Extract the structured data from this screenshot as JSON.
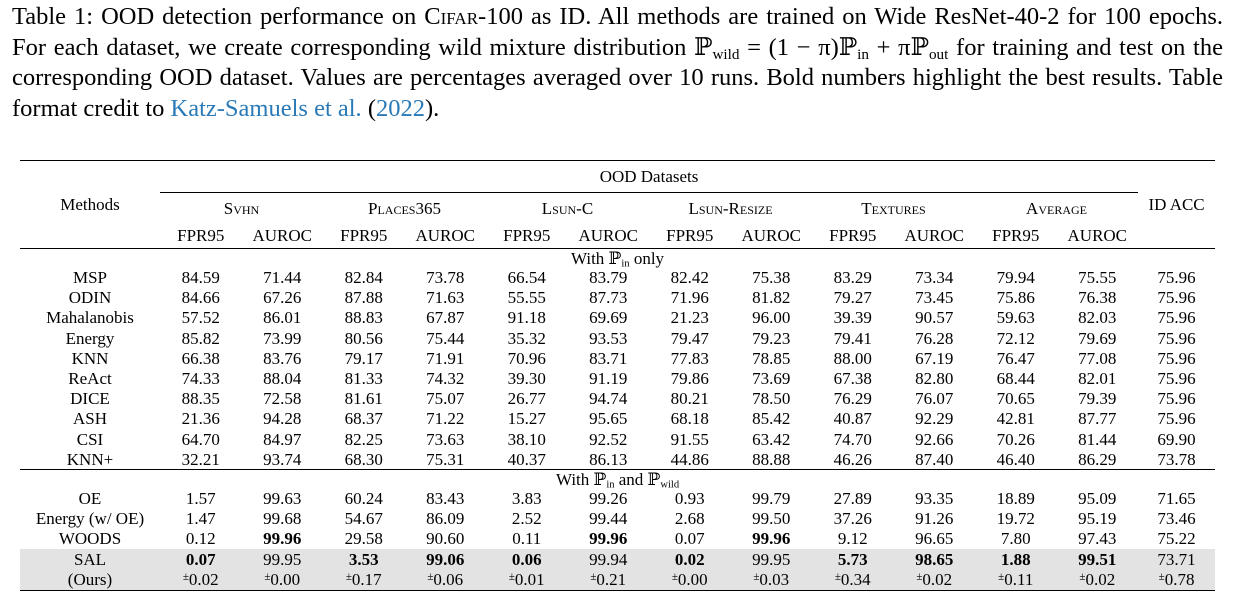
{
  "caption": [
    "Table 1: OOD detection performance on ",
    "Cifar-100",
    " as ID. All methods are trained on Wide ResNet-40-2 for 100 epochs. For each dataset, we create corresponding wild mixture distribution ",
    "ℙ",
    "wild",
    " = (1 − π)ℙ",
    "in",
    " + πℙ",
    "out",
    " for training and test on the corresponding OOD dataset. Values are percentages averaged over 10 runs. Bold numbers highlight the best results. Table format credit to ",
    "Katz-Samuels et al.",
    " (",
    "2022",
    ")."
  ],
  "table": {
    "header": {
      "methods": "Methods",
      "group": "OOD Datasets",
      "datasets": [
        "Svhn",
        "Places365",
        "Lsun-C",
        "Lsun-Resize",
        "Textures",
        "Average"
      ],
      "metrics": [
        "FPR95",
        "AUROC",
        "FPR95",
        "AUROC",
        "FPR95",
        "AUROC",
        "FPR95",
        "AUROC",
        "FPR95",
        "AUROC",
        "FPR95",
        "AUROC"
      ],
      "id_acc": "ID ACC"
    },
    "sections": [
      {
        "label": [
          {
            "text": "With ℙ"
          },
          {
            "text": "in",
            "sub": true
          },
          {
            "text": " only"
          }
        ],
        "rows": [
          {
            "method": "MSP",
            "values": [
              "84.59",
              "71.44",
              "82.84",
              "73.78",
              "66.54",
              "83.79",
              "82.42",
              "75.38",
              "83.29",
              "73.34",
              "79.94",
              "75.55",
              "75.96"
            ]
          },
          {
            "method": "ODIN",
            "values": [
              "84.66",
              "67.26",
              "87.88",
              "71.63",
              "55.55",
              "87.73",
              "71.96",
              "81.82",
              "79.27",
              "73.45",
              "75.86",
              "76.38",
              "75.96"
            ]
          },
          {
            "method": "Mahalanobis",
            "values": [
              "57.52",
              "86.01",
              "88.83",
              "67.87",
              "91.18",
              "69.69",
              "21.23",
              "96.00",
              "39.39",
              "90.57",
              "59.63",
              "82.03",
              "75.96"
            ]
          },
          {
            "method": "Energy",
            "values": [
              "85.82",
              "73.99",
              "80.56",
              "75.44",
              "35.32",
              "93.53",
              "79.47",
              "79.23",
              "79.41",
              "76.28",
              "72.12",
              "79.69",
              "75.96"
            ]
          },
          {
            "method": "KNN",
            "values": [
              "66.38",
              "83.76",
              "79.17",
              "71.91",
              "70.96",
              "83.71",
              "77.83",
              "78.85",
              "88.00",
              "67.19",
              "76.47",
              "77.08",
              "75.96"
            ]
          },
          {
            "method": "ReAct",
            "values": [
              "74.33",
              "88.04",
              "81.33",
              "74.32",
              "39.30",
              "91.19",
              "79.86",
              "73.69",
              "67.38",
              "82.80",
              "68.44",
              "82.01",
              "75.96"
            ]
          },
          {
            "method": "DICE",
            "values": [
              "88.35",
              "72.58",
              "81.61",
              "75.07",
              "26.77",
              "94.74",
              "80.21",
              "78.50",
              "76.29",
              "76.07",
              "70.65",
              "79.39",
              "75.96"
            ]
          },
          {
            "method": "ASH",
            "values": [
              "21.36",
              "94.28",
              "68.37",
              "71.22",
              "15.27",
              "95.65",
              "68.18",
              "85.42",
              "40.87",
              "92.29",
              "42.81",
              "87.77",
              "75.96"
            ]
          },
          {
            "method": "CSI",
            "values": [
              "64.70",
              "84.97",
              "82.25",
              "73.63",
              "38.10",
              "92.52",
              "91.55",
              "63.42",
              "74.70",
              "92.66",
              "70.26",
              "81.44",
              "69.90"
            ]
          },
          {
            "method": "KNN+",
            "values": [
              "32.21",
              "93.74",
              "68.30",
              "75.31",
              "40.37",
              "86.13",
              "44.86",
              "88.88",
              "46.26",
              "87.40",
              "46.40",
              "86.29",
              "73.78"
            ]
          }
        ]
      },
      {
        "label": [
          {
            "text": "With ℙ"
          },
          {
            "text": "in",
            "sub": true
          },
          {
            "text": " and ℙ"
          },
          {
            "text": "wild",
            "sub": true
          }
        ],
        "rows": [
          {
            "method": "OE",
            "values": [
              "1.57",
              "99.63",
              "60.24",
              "83.43",
              "3.83",
              "99.26",
              "0.93",
              "99.79",
              "27.89",
              "93.35",
              "18.89",
              "95.09",
              "71.65"
            ]
          },
          {
            "method": "Energy (w/ OE)",
            "values": [
              "1.47",
              "99.68",
              "54.67",
              "86.09",
              "2.52",
              "99.44",
              "2.68",
              "99.50",
              "37.26",
              "91.26",
              "19.72",
              "95.19",
              "73.46"
            ]
          },
          {
            "method": "WOODS",
            "values": [
              "0.12",
              "99.96",
              "29.58",
              "90.60",
              "0.11",
              "99.96",
              "0.07",
              "99.96",
              "9.12",
              "96.65",
              "7.80",
              "97.43",
              "75.22"
            ],
            "bold": [
              1,
              5,
              7
            ]
          },
          {
            "method": "SAL",
            "method_note": "(Ours)",
            "highlight": true,
            "values": [
              "0.07",
              "99.95",
              "3.53",
              "99.06",
              "0.06",
              "99.94",
              "0.02",
              "99.95",
              "5.73",
              "98.65",
              "1.88",
              "99.51",
              "73.71"
            ],
            "std": [
              "±0.02",
              "±0.00",
              "±0.17",
              "±0.06",
              "±0.01",
              "±0.21",
              "±0.00",
              "±0.03",
              "±0.34",
              "±0.02",
              "±0.11",
              "±0.02",
              "±0.78"
            ],
            "bold": [
              0,
              2,
              3,
              4,
              6,
              8,
              9,
              10,
              11
            ]
          }
        ]
      }
    ]
  }
}
